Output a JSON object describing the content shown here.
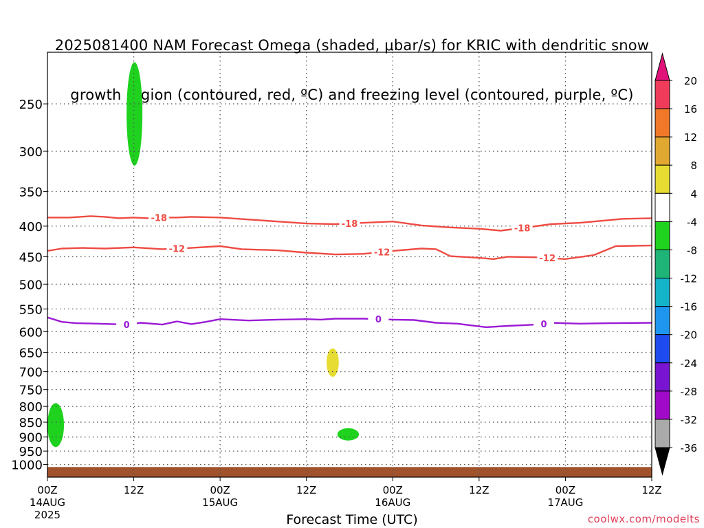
{
  "title_line1": "2025081400 NAM Forecast Omega (shaded, μbar/s) for KRIC with dendritic snow",
  "title_line2": "growth region (contoured, red, ºC) and freezing level (contoured, purple, ºC)",
  "credit": "coolwx.com/modelts",
  "chart_data": {
    "type": "time-height cross section (contour)",
    "xlabel": "Forecast Time (UTC)",
    "x_range_hours": [
      0,
      84
    ],
    "x_ticks": [
      {
        "h": 0,
        "label": "00Z",
        "date": "14AUG",
        "year": "2025"
      },
      {
        "h": 12,
        "label": "12Z"
      },
      {
        "h": 24,
        "label": "00Z",
        "date": "15AUG"
      },
      {
        "h": 36,
        "label": "12Z"
      },
      {
        "h": 48,
        "label": "00Z",
        "date": "16AUG"
      },
      {
        "h": 60,
        "label": "12Z"
      },
      {
        "h": 72,
        "label": "00Z",
        "date": "17AUG"
      },
      {
        "h": 84,
        "label": "12Z"
      }
    ],
    "y_axis": {
      "scale": "log pressure, inverted",
      "range_hPa": [
        1050,
        205
      ],
      "ticks": [
        250,
        300,
        350,
        400,
        450,
        500,
        550,
        600,
        650,
        700,
        750,
        800,
        850,
        900,
        950,
        1000
      ]
    },
    "grid": "dotted",
    "colorbar": {
      "labels": [
        "20",
        "16",
        "12",
        "8",
        "4",
        "-4",
        "-8",
        "-12",
        "-16",
        "-20",
        "-24",
        "-28",
        "-32",
        "-36"
      ],
      "colors": [
        "#f03c5a",
        "#f07828",
        "#e0a830",
        "#e6dc32",
        "#ffffff",
        "#1ed21e",
        "#1eb478",
        "#14b4c8",
        "#1e96f0",
        "#1e4bf0",
        "#7814d2",
        "#a00ac8",
        "#aaaaaa"
      ],
      "top_arrow_color": "#e0127a",
      "bottom_arrow_color": "#000000"
    },
    "contours": [
      {
        "label": "-18",
        "color": "#ee4b43",
        "points": [
          [
            0,
            387
          ],
          [
            3,
            387
          ],
          [
            6,
            385
          ],
          [
            8,
            386
          ],
          [
            10,
            388
          ],
          [
            12,
            387
          ],
          [
            14,
            388
          ],
          [
            16,
            387
          ],
          [
            18,
            387
          ],
          [
            20,
            386
          ],
          [
            24,
            387
          ],
          [
            28,
            390
          ],
          [
            32,
            393
          ],
          [
            36,
            396
          ],
          [
            40,
            397
          ],
          [
            44,
            395
          ],
          [
            48,
            393
          ],
          [
            52,
            399
          ],
          [
            56,
            402
          ],
          [
            60,
            404
          ],
          [
            63,
            407
          ],
          [
            66,
            403
          ],
          [
            70,
            397
          ],
          [
            74,
            395
          ],
          [
            77,
            392
          ],
          [
            80,
            389
          ],
          [
            84,
            388
          ]
        ],
        "label_positions": [
          15.5,
          42,
          66
        ]
      },
      {
        "label": "-12",
        "color": "#ee4b43",
        "points": [
          [
            0,
            440
          ],
          [
            2,
            436
          ],
          [
            5,
            435
          ],
          [
            8,
            436
          ],
          [
            12,
            434
          ],
          [
            16,
            437
          ],
          [
            20,
            435
          ],
          [
            24,
            432
          ],
          [
            27,
            437
          ],
          [
            32,
            439
          ],
          [
            36,
            443
          ],
          [
            40,
            446
          ],
          [
            44,
            445
          ],
          [
            48,
            440
          ],
          [
            52,
            436
          ],
          [
            54,
            437
          ],
          [
            56,
            449
          ],
          [
            60,
            452
          ],
          [
            62,
            454
          ],
          [
            64,
            450
          ],
          [
            68,
            451
          ],
          [
            72,
            454
          ],
          [
            76,
            447
          ],
          [
            79,
            432
          ],
          [
            84,
            431
          ]
        ],
        "label_positions": [
          18,
          46.5,
          69.5
        ]
      },
      {
        "label": "0",
        "color": "#9b1ad6",
        "points": [
          [
            0,
            568
          ],
          [
            2,
            578
          ],
          [
            4,
            581
          ],
          [
            7,
            582
          ],
          [
            11,
            584
          ],
          [
            13,
            580
          ],
          [
            16,
            584
          ],
          [
            18,
            577
          ],
          [
            20,
            583
          ],
          [
            22,
            578
          ],
          [
            24,
            572
          ],
          [
            28,
            575
          ],
          [
            32,
            573
          ],
          [
            36,
            572
          ],
          [
            38,
            573
          ],
          [
            40,
            571
          ],
          [
            44,
            571
          ],
          [
            48,
            573
          ],
          [
            51,
            574
          ],
          [
            54,
            580
          ],
          [
            57,
            582
          ],
          [
            59,
            586
          ],
          [
            61,
            590
          ],
          [
            64,
            587
          ],
          [
            68,
            584
          ],
          [
            70,
            580
          ],
          [
            74,
            582
          ],
          [
            78,
            581
          ],
          [
            84,
            580
          ]
        ],
        "label_positions": [
          11,
          46,
          69
        ]
      }
    ],
    "shaded_regions": [
      {
        "class": "-8 to -4",
        "color": "#1ed21e",
        "hours": [
          11.0,
          13.2
        ],
        "pressure_hPa": [
          213,
          317
        ]
      },
      {
        "class": "-8 to -4",
        "color": "#1ed21e",
        "hours": [
          0.0,
          2.3
        ],
        "pressure_hPa": [
          790,
          935
        ]
      },
      {
        "class": "-8 to -4",
        "color": "#1ed21e",
        "hours": [
          40.3,
          43.3
        ],
        "pressure_hPa": [
          870,
          912
        ]
      },
      {
        "class": "4 to 8",
        "color": "#e6dc32",
        "hours": [
          38.8,
          40.5
        ],
        "pressure_hPa": [
          640,
          714
        ]
      }
    ],
    "terrain_band": {
      "color": "#a0522d",
      "pressure_hPa": [
        1010,
        1050
      ]
    }
  }
}
